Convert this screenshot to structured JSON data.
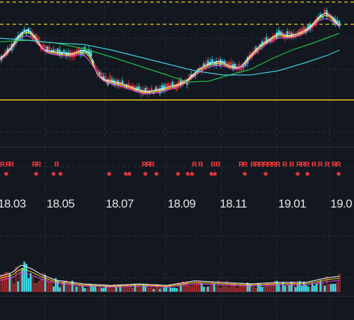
{
  "chart_data": {
    "type": "candlestick",
    "x_tick_labels": [
      "18.03",
      "18.05",
      "18.07",
      "18.09",
      "18.11",
      "19.01",
      "19.0"
    ],
    "price_series_colors": {
      "ma_white": "#ffffff",
      "ma_yellow": "#f2d21e",
      "ma_magenta": "#e94ce0",
      "ma_green": "#1fbf4a",
      "ma_cyan": "#3fd3e0",
      "up": "#ff3b3b",
      "down": "#3fd3e0"
    },
    "reference_lines": {
      "dashed_yellow": "#f2d21e",
      "solid_yellow": "#f2d21e"
    },
    "signal_marks": {
      "r_label": "R",
      "star_label": "★"
    },
    "volume_colors": {
      "up": "#ff3b3b",
      "down": "#3fd3e0",
      "ma_white": "#ffffff",
      "ma_yellow": "#f2d21e",
      "ma_magenta": "#e94ce0"
    },
    "grid": true
  }
}
